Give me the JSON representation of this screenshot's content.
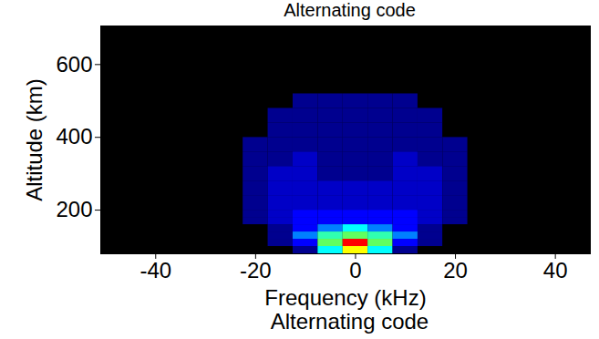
{
  "chart_data": {
    "type": "heatmap",
    "title": "Alternating code",
    "caption": "Alternating code",
    "xlabel": "Frequency (kHz)",
    "ylabel": "Altitude (km)",
    "xlim": [
      -51,
      47
    ],
    "ylim": [
      80,
      706
    ],
    "xticks": [
      -40,
      -20,
      0,
      20,
      40
    ],
    "yticks": [
      200,
      400,
      600
    ],
    "x_edges": [
      -47.5,
      -42.5,
      -37.5,
      -32.5,
      -27.5,
      -22.5,
      -17.5,
      -12.5,
      -7.5,
      -2.5,
      2.5,
      7.5,
      12.5,
      17.5,
      22.5,
      27.5,
      32.5,
      37.5,
      42.5,
      47.5
    ],
    "y_edges": [
      80,
      100,
      120,
      140,
      160,
      180,
      200,
      240,
      280,
      320,
      360,
      400,
      440,
      480,
      520,
      560,
      600,
      706
    ],
    "values": [
      [
        0,
        0,
        0,
        0,
        0,
        0,
        0,
        1,
        5,
        9,
        5,
        1,
        0,
        0,
        0,
        0,
        0,
        0,
        0
      ],
      [
        0,
        0,
        0,
        0,
        0,
        0,
        1,
        3,
        7,
        10,
        7,
        3,
        1,
        0,
        0,
        0,
        0,
        0,
        0
      ],
      [
        0,
        0,
        0,
        0,
        0,
        0,
        1,
        4,
        6,
        7,
        6,
        4,
        1,
        0,
        0,
        0,
        0,
        0,
        0
      ],
      [
        0,
        0,
        0,
        0,
        0,
        0,
        1,
        3,
        4,
        5,
        4,
        3,
        1,
        0,
        0,
        0,
        0,
        0,
        0
      ],
      [
        0,
        0,
        0,
        0,
        0,
        1,
        2,
        3,
        3,
        3,
        3,
        3,
        2,
        1,
        0,
        0,
        0,
        0,
        0
      ],
      [
        0,
        0,
        0,
        0,
        0,
        1,
        2,
        3,
        3,
        3,
        3,
        3,
        2,
        1,
        0,
        0,
        0,
        0,
        0
      ],
      [
        0,
        0,
        0,
        0,
        0,
        1,
        2,
        2,
        2,
        2,
        2,
        2,
        2,
        1,
        0,
        0,
        0,
        0,
        0
      ],
      [
        0,
        0,
        0,
        0,
        0,
        1,
        2,
        2,
        2,
        2,
        2,
        2,
        2,
        1,
        0,
        0,
        0,
        0,
        0
      ],
      [
        0,
        0,
        0,
        0,
        0,
        1,
        2,
        2,
        1,
        1,
        1,
        2,
        2,
        1,
        0,
        0,
        0,
        0,
        0
      ],
      [
        0,
        0,
        0,
        0,
        0,
        1,
        1,
        2,
        1,
        1,
        1,
        2,
        1,
        1,
        0,
        0,
        0,
        0,
        0
      ],
      [
        0,
        0,
        0,
        0,
        0,
        1,
        1,
        1,
        1,
        1,
        1,
        1,
        1,
        1,
        0,
        0,
        0,
        0,
        0
      ],
      [
        0,
        0,
        0,
        0,
        0,
        0,
        1,
        1,
        1,
        1,
        1,
        1,
        1,
        0,
        0,
        0,
        0,
        0,
        0
      ],
      [
        0,
        0,
        0,
        0,
        0,
        0,
        1,
        1,
        1,
        1,
        1,
        1,
        1,
        0,
        0,
        0,
        0,
        0,
        0
      ],
      [
        0,
        0,
        0,
        0,
        0,
        0,
        0,
        1,
        1,
        1,
        1,
        1,
        0,
        0,
        0,
        0,
        0,
        0,
        0
      ],
      [
        0,
        0,
        0,
        0,
        0,
        0,
        0,
        0,
        0,
        0,
        0,
        0,
        0,
        0,
        0,
        0,
        0,
        0,
        0
      ],
      [
        0,
        0,
        0,
        0,
        0,
        0,
        0,
        0,
        0,
        0,
        0,
        0,
        0,
        0,
        0,
        0,
        0,
        0,
        0
      ],
      [
        0,
        0,
        0,
        0,
        0,
        0,
        0,
        0,
        0,
        0,
        0,
        0,
        0,
        0,
        0,
        0,
        0,
        0,
        0
      ]
    ],
    "color_range": [
      0,
      10
    ]
  }
}
